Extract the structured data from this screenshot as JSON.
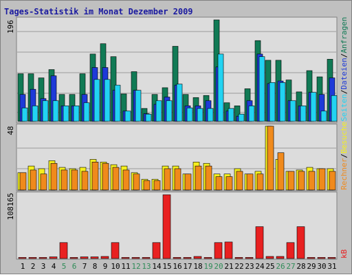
{
  "title": "Tages-Statistik im Monat Dezember 2009",
  "colors": {
    "background": "#c0c0c0",
    "plot_bg": "#dcdcdc",
    "gridline": "#9a9a9a",
    "title": "#1a1aa0",
    "day_label": "#000000",
    "weekend_label": "#2e8b57",
    "anfragen": "#117a55",
    "dateien": "#1e3ad8",
    "seiten": "#22d3f2",
    "besuche": "#f5ef1e",
    "rechner": "#f08a1c",
    "kb": "#e82020"
  },
  "chart_data": {
    "type": "bar",
    "title": "Tages-Statistik im Monat Dezember 2009",
    "categories": [
      "1",
      "2",
      "3",
      "4",
      "5",
      "6",
      "7",
      "8",
      "9",
      "10",
      "11",
      "12",
      "13",
      "14",
      "15",
      "16",
      "17",
      "18",
      "19",
      "20",
      "21",
      "22",
      "23",
      "24",
      "25",
      "26",
      "27",
      "28",
      "29",
      "30",
      "31"
    ],
    "weekend_days": [
      "5",
      "6",
      "12",
      "13",
      "19",
      "20",
      "26",
      "27"
    ],
    "panels": [
      {
        "name": "top",
        "ylim": [
          0,
          196
        ],
        "scale_label": "196",
        "legend": [
          "Anfragen",
          "Dateien",
          "Seiten"
        ],
        "series": [
          {
            "name": "Anfragen",
            "color": "#117a55",
            "values": [
              92,
              92,
              84,
              100,
              52,
              52,
              92,
              130,
              150,
              125,
              53,
              96,
              25,
              52,
              65,
              145,
              52,
              46,
              50,
              196,
              36,
              30,
              63,
              156,
              118,
              118,
              80,
              57,
              98,
              86,
              120
            ]
          },
          {
            "name": "Dateien",
            "color": "#1e3ad8",
            "values": [
              52,
              62,
              44,
              88,
              30,
              30,
              52,
              104,
              104,
              60,
              20,
              60,
              15,
              33,
              47,
              70,
              30,
              30,
              40,
              105,
              20,
              10,
              40,
              130,
              73,
              78,
              40,
              30,
              56,
              52,
              84
            ]
          },
          {
            "name": "Seiten",
            "color": "#22d3f2",
            "values": [
              26,
              30,
              40,
              40,
              30,
              30,
              36,
              81,
              81,
              70,
              20,
              60,
              14,
              40,
              40,
              72,
              26,
              25,
              25,
              130,
              25,
              14,
              30,
              125,
              75,
              75,
              40,
              30,
              56,
              20,
              50
            ]
          }
        ]
      },
      {
        "name": "middle",
        "ylim": [
          0,
          48
        ],
        "scale_label": "48",
        "legend": [
          "Rechner",
          "Besuche"
        ],
        "series": [
          {
            "name": "Besuche",
            "color": "#f5ef1e",
            "values": [
              13,
              18,
              16,
              22,
              17,
              16,
              17,
              23,
              21,
              19,
              18,
              13,
              8,
              8,
              18,
              18,
              12,
              21,
              20,
              12,
              12,
              16,
              12,
              14,
              48,
              23,
              14,
              15,
              17,
              16,
              16
            ]
          },
          {
            "name": "Rechner",
            "color": "#f08a1c",
            "values": [
              13,
              15,
              12,
              20,
              15,
              15,
              14,
              21,
              20,
              17,
              15,
              12,
              7,
              7,
              16,
              16,
              12,
              18,
              18,
              10,
              10,
              14,
              12,
              12,
              48,
              28,
              14,
              14,
              14,
              16,
              14
            ]
          }
        ]
      },
      {
        "name": "bottom",
        "ylim": [
          0,
          108165
        ],
        "scale_label": "108165",
        "legend": [
          "kB"
        ],
        "series": [
          {
            "name": "kB",
            "color": "#e82020",
            "values": [
              1800,
              1800,
              1800,
              2800,
              27000,
              1800,
              2800,
              2800,
              3500,
              27000,
              1800,
              1800,
              1800,
              27000,
              108165,
              1800,
              1800,
              3500,
              1800,
              27000,
              28000,
              1800,
              1800,
              54000,
              3500,
              3500,
              27000,
              54000,
              1800,
              1800,
              1800
            ]
          }
        ]
      }
    ]
  },
  "legend_labels": {
    "anfragen": "Anfragen",
    "dateien": "Dateien",
    "seiten": "Seiten",
    "besuche": "Besuche",
    "rechner": "Rechner",
    "kb": "kB",
    "sep": "/"
  }
}
